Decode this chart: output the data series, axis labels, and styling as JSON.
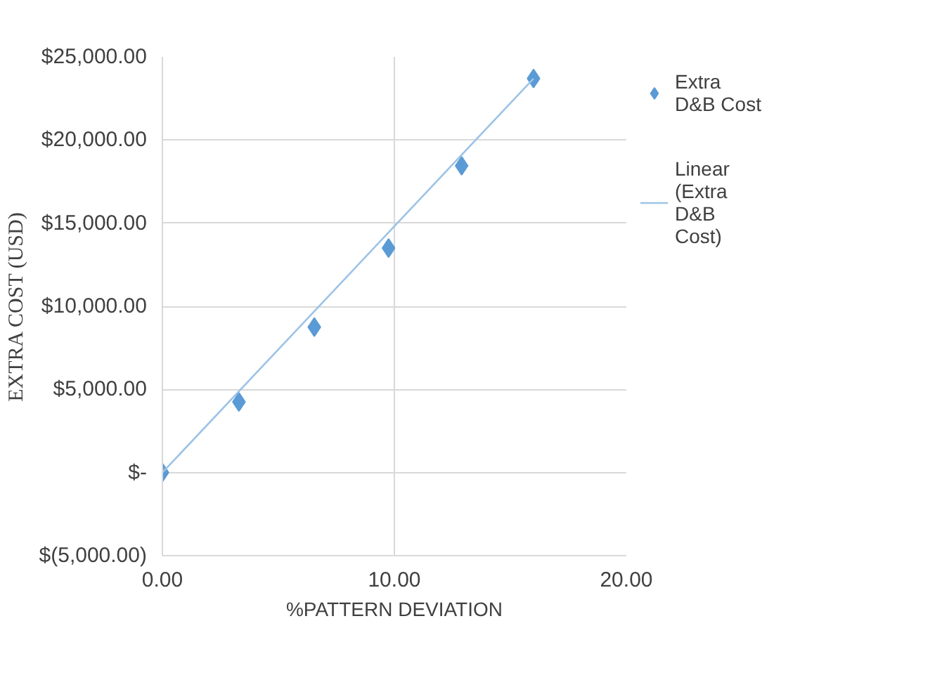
{
  "chart_data": {
    "type": "scatter",
    "xlabel": "%PATTERN DEVIATION",
    "ylabel": "EXTRA COST (USD)",
    "x": [
      0,
      3.3,
      6.55,
      9.75,
      12.9,
      16.0
    ],
    "series": [
      {
        "name": "Extra D&B Cost",
        "color": "#5b9bd5",
        "values": [
          0,
          4250,
          8750,
          13500,
          18450,
          23700
        ],
        "marker": "diamond"
      },
      {
        "name": "Linear (Extra D&B Cost)",
        "type": "line",
        "color": "#9dc3e6",
        "x": [
          0,
          16.0
        ],
        "values": [
          0,
          23700
        ],
        "line_style": "solid"
      }
    ],
    "xlim": [
      0,
      20
    ],
    "xticks": [
      {
        "value": 0,
        "label": "0.00"
      },
      {
        "value": 10,
        "label": "10.00"
      },
      {
        "value": 20,
        "label": "20.00"
      }
    ],
    "ylim": [
      -5000,
      25000
    ],
    "yticks": [
      {
        "value": -5000,
        "label": "$(5,000.00)"
      },
      {
        "value": 0,
        "label": "$-"
      },
      {
        "value": 5000,
        "label": "$5,000.00"
      },
      {
        "value": 10000,
        "label": "$10,000.00"
      },
      {
        "value": 15000,
        "label": "$15,000.00"
      },
      {
        "value": 20000,
        "label": "$20,000.00"
      },
      {
        "value": 25000,
        "label": "$25,000.00"
      }
    ],
    "grid": true,
    "legend": "right"
  }
}
